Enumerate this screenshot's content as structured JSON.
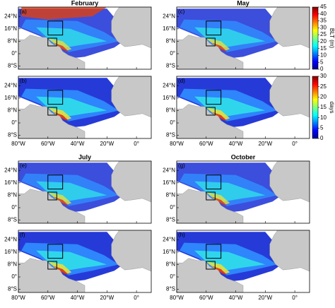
{
  "panels": [
    {
      "label": "(a)",
      "title": "February"
    },
    {
      "label": "(c)",
      "title": "May"
    },
    {
      "label": "(b)"
    },
    {
      "label": "(d)"
    },
    {
      "label": "(e)",
      "title": "July"
    },
    {
      "label": "(g)",
      "title": "October"
    },
    {
      "label": "(f)"
    },
    {
      "label": "(h)"
    }
  ],
  "lat_lim": [
    -10,
    30
  ],
  "lon_lim": [
    -80,
    10
  ],
  "lat_ticks": [
    {
      "value": 24,
      "label": "24°N"
    },
    {
      "value": 16,
      "label": "16°N"
    },
    {
      "value": 8,
      "label": "8°N"
    },
    {
      "value": 0,
      "label": "0°"
    },
    {
      "value": -8,
      "label": "8°S"
    }
  ],
  "lon_ticks": [
    {
      "value": -80,
      "label": "80°W"
    },
    {
      "value": -60,
      "label": "60°W"
    },
    {
      "value": -40,
      "label": "40°W"
    },
    {
      "value": -20,
      "label": "20°W"
    },
    {
      "value": 0,
      "label": "0°"
    }
  ],
  "colorbars": [
    {
      "label": "BLT (m)",
      "lim": [
        0,
        45
      ],
      "ticks": [
        0,
        5,
        10,
        15,
        20,
        25,
        30,
        35,
        40,
        45
      ]
    },
    {
      "label": "days",
      "lim": [
        0,
        30
      ],
      "ticks": [
        0,
        5,
        10,
        15,
        20,
        25,
        30
      ]
    }
  ]
}
